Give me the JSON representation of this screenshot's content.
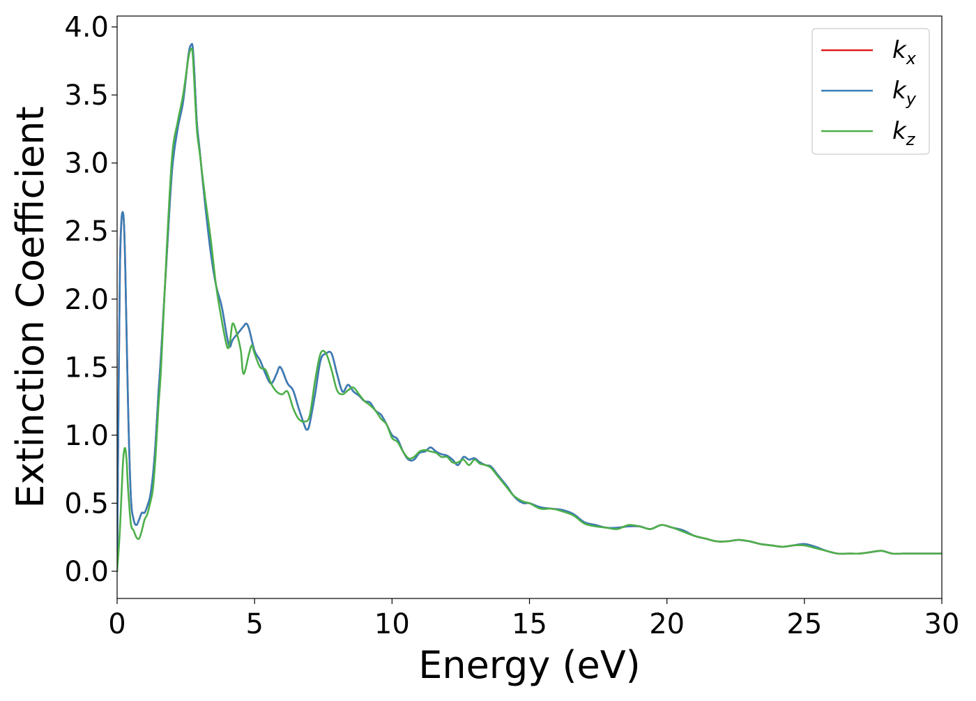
{
  "chart_data": {
    "type": "line",
    "xlabel": "Energy (eV)",
    "ylabel": "Extinction Coefficient",
    "xlim": [
      0,
      30
    ],
    "ylim": [
      -0.2,
      4.08
    ],
    "xticks": [
      "0",
      "5",
      "10",
      "15",
      "20",
      "25",
      "30"
    ],
    "xtick_values": [
      0,
      5,
      10,
      15,
      20,
      25,
      30
    ],
    "yticks": [
      "0.0",
      "0.5",
      "1.0",
      "1.5",
      "2.0",
      "2.5",
      "3.0",
      "3.5",
      "4.0"
    ],
    "ytick_values": [
      0,
      0.5,
      1.0,
      1.5,
      2.0,
      2.5,
      3.0,
      3.5,
      4.0
    ],
    "grid": false,
    "legend_position": "top-right",
    "series": [
      {
        "name": "k",
        "subscript": "x",
        "color": "#e41a1c",
        "x": [
          0,
          0.05,
          0.1,
          0.15,
          0.2,
          0.25,
          0.3,
          0.4,
          0.5,
          0.6,
          0.7,
          0.8,
          0.9,
          1.0,
          1.1,
          1.2,
          1.3,
          1.4,
          1.5,
          1.6,
          1.8,
          2.0,
          2.2,
          2.4,
          2.6,
          2.7,
          2.75,
          2.8,
          2.9,
          3.0,
          3.2,
          3.4,
          3.6,
          3.8,
          4.0,
          4.1,
          4.2,
          4.4,
          4.6,
          4.7,
          4.8,
          5.0,
          5.2,
          5.4,
          5.6,
          5.8,
          5.9,
          6.0,
          6.2,
          6.4,
          6.6,
          6.8,
          6.9,
          7.0,
          7.2,
          7.4,
          7.6,
          7.8,
          8.0,
          8.2,
          8.4,
          8.6,
          8.8,
          9.0,
          9.2,
          9.4,
          9.6,
          9.8,
          10.0,
          10.2,
          10.4,
          10.6,
          10.8,
          11.0,
          11.2,
          11.4,
          11.6,
          11.8,
          12.0,
          12.2,
          12.4,
          12.6,
          12.8,
          13.0,
          13.2,
          13.4,
          13.6,
          13.8,
          14.0,
          14.2,
          14.4,
          14.6,
          14.8,
          15.0,
          15.4,
          15.8,
          16.2,
          16.6,
          17.0,
          17.4,
          17.8,
          18.2,
          18.6,
          19.0,
          19.4,
          19.8,
          20.2,
          20.6,
          21.0,
          21.4,
          21.8,
          22.2,
          22.6,
          23.0,
          23.4,
          23.8,
          24.2,
          24.6,
          25.0,
          25.4,
          25.8,
          26.2,
          26.6,
          27.0,
          27.4,
          27.8,
          28.2,
          28.6,
          29.0,
          29.4,
          29.8,
          30.0
        ],
        "y": [
          0.0,
          1.2,
          2.2,
          2.55,
          2.64,
          2.55,
          2.2,
          1.2,
          0.55,
          0.38,
          0.34,
          0.38,
          0.43,
          0.43,
          0.48,
          0.55,
          0.7,
          0.95,
          1.3,
          1.6,
          2.3,
          2.95,
          3.25,
          3.45,
          3.8,
          3.87,
          3.85,
          3.7,
          3.3,
          3.1,
          2.7,
          2.35,
          2.1,
          1.95,
          1.72,
          1.65,
          1.7,
          1.75,
          1.8,
          1.82,
          1.78,
          1.62,
          1.55,
          1.45,
          1.38,
          1.45,
          1.5,
          1.48,
          1.38,
          1.33,
          1.2,
          1.08,
          1.04,
          1.08,
          1.3,
          1.55,
          1.6,
          1.6,
          1.45,
          1.32,
          1.37,
          1.32,
          1.29,
          1.25,
          1.24,
          1.18,
          1.15,
          1.08,
          1.0,
          0.97,
          0.88,
          0.82,
          0.82,
          0.87,
          0.88,
          0.91,
          0.88,
          0.86,
          0.85,
          0.82,
          0.78,
          0.84,
          0.82,
          0.83,
          0.8,
          0.78,
          0.77,
          0.72,
          0.67,
          0.62,
          0.56,
          0.52,
          0.5,
          0.5,
          0.47,
          0.46,
          0.45,
          0.42,
          0.36,
          0.34,
          0.32,
          0.32,
          0.33,
          0.33,
          0.31,
          0.34,
          0.32,
          0.3,
          0.26,
          0.24,
          0.22,
          0.22,
          0.23,
          0.22,
          0.2,
          0.19,
          0.18,
          0.19,
          0.2,
          0.18,
          0.15,
          0.13,
          0.13,
          0.13,
          0.14,
          0.15,
          0.13,
          0.13,
          0.13,
          0.13,
          0.13,
          0.13
        ]
      },
      {
        "name": "k",
        "subscript": "y",
        "color": "#377eb8",
        "x": [
          0,
          0.05,
          0.1,
          0.15,
          0.2,
          0.25,
          0.3,
          0.4,
          0.5,
          0.6,
          0.7,
          0.8,
          0.9,
          1.0,
          1.1,
          1.2,
          1.3,
          1.4,
          1.5,
          1.6,
          1.8,
          2.0,
          2.2,
          2.4,
          2.6,
          2.7,
          2.75,
          2.8,
          2.9,
          3.0,
          3.2,
          3.4,
          3.6,
          3.8,
          4.0,
          4.1,
          4.2,
          4.4,
          4.6,
          4.7,
          4.8,
          5.0,
          5.2,
          5.4,
          5.6,
          5.8,
          5.9,
          6.0,
          6.2,
          6.4,
          6.6,
          6.8,
          6.9,
          7.0,
          7.2,
          7.4,
          7.6,
          7.8,
          8.0,
          8.2,
          8.4,
          8.6,
          8.8,
          9.0,
          9.2,
          9.4,
          9.6,
          9.8,
          10.0,
          10.2,
          10.4,
          10.6,
          10.8,
          11.0,
          11.2,
          11.4,
          11.6,
          11.8,
          12.0,
          12.2,
          12.4,
          12.6,
          12.8,
          13.0,
          13.2,
          13.4,
          13.6,
          13.8,
          14.0,
          14.2,
          14.4,
          14.6,
          14.8,
          15.0,
          15.4,
          15.8,
          16.2,
          16.6,
          17.0,
          17.4,
          17.8,
          18.2,
          18.6,
          19.0,
          19.4,
          19.8,
          20.2,
          20.6,
          21.0,
          21.4,
          21.8,
          22.2,
          22.6,
          23.0,
          23.4,
          23.8,
          24.2,
          24.6,
          25.0,
          25.4,
          25.8,
          26.2,
          26.6,
          27.0,
          27.4,
          27.8,
          28.2,
          28.6,
          29.0,
          29.4,
          29.8,
          30.0
        ],
        "y": [
          0.0,
          1.2,
          2.2,
          2.55,
          2.64,
          2.55,
          2.2,
          1.2,
          0.55,
          0.38,
          0.34,
          0.38,
          0.43,
          0.43,
          0.48,
          0.55,
          0.7,
          0.95,
          1.3,
          1.6,
          2.3,
          2.95,
          3.25,
          3.45,
          3.8,
          3.87,
          3.85,
          3.7,
          3.3,
          3.1,
          2.7,
          2.35,
          2.1,
          1.95,
          1.72,
          1.65,
          1.7,
          1.75,
          1.8,
          1.82,
          1.78,
          1.62,
          1.55,
          1.45,
          1.38,
          1.45,
          1.5,
          1.48,
          1.38,
          1.33,
          1.2,
          1.08,
          1.04,
          1.08,
          1.3,
          1.55,
          1.6,
          1.6,
          1.45,
          1.32,
          1.37,
          1.32,
          1.29,
          1.25,
          1.24,
          1.18,
          1.15,
          1.08,
          1.0,
          0.97,
          0.88,
          0.82,
          0.82,
          0.87,
          0.88,
          0.91,
          0.88,
          0.86,
          0.85,
          0.82,
          0.78,
          0.84,
          0.82,
          0.83,
          0.8,
          0.78,
          0.77,
          0.72,
          0.67,
          0.62,
          0.56,
          0.52,
          0.5,
          0.5,
          0.47,
          0.46,
          0.45,
          0.42,
          0.36,
          0.34,
          0.32,
          0.32,
          0.33,
          0.33,
          0.31,
          0.34,
          0.32,
          0.3,
          0.26,
          0.24,
          0.22,
          0.22,
          0.23,
          0.22,
          0.2,
          0.19,
          0.18,
          0.19,
          0.2,
          0.18,
          0.15,
          0.13,
          0.13,
          0.13,
          0.14,
          0.15,
          0.13,
          0.13,
          0.13,
          0.13,
          0.13,
          0.13
        ]
      },
      {
        "name": "k",
        "subscript": "z",
        "color": "#4daf4a",
        "x": [
          0,
          0.1,
          0.2,
          0.25,
          0.3,
          0.35,
          0.4,
          0.5,
          0.6,
          0.7,
          0.8,
          0.9,
          1.0,
          1.1,
          1.2,
          1.3,
          1.4,
          1.5,
          1.6,
          1.8,
          2.0,
          2.2,
          2.4,
          2.6,
          2.7,
          2.75,
          2.8,
          2.9,
          3.0,
          3.2,
          3.4,
          3.6,
          3.8,
          4.0,
          4.1,
          4.2,
          4.35,
          4.5,
          4.6,
          4.8,
          4.9,
          5.0,
          5.2,
          5.4,
          5.6,
          5.8,
          6.0,
          6.2,
          6.4,
          6.6,
          6.8,
          7.0,
          7.2,
          7.4,
          7.6,
          7.8,
          8.0,
          8.2,
          8.4,
          8.6,
          8.8,
          9.0,
          9.2,
          9.4,
          9.6,
          9.8,
          10.0,
          10.2,
          10.4,
          10.6,
          10.8,
          11.0,
          11.2,
          11.4,
          11.6,
          11.8,
          12.0,
          12.2,
          12.4,
          12.6,
          12.8,
          13.0,
          13.2,
          13.4,
          13.6,
          13.8,
          14.0,
          14.2,
          14.4,
          14.6,
          14.8,
          15.0,
          15.4,
          15.8,
          16.2,
          16.6,
          17.0,
          17.4,
          17.8,
          18.2,
          18.6,
          19.0,
          19.4,
          19.8,
          20.2,
          20.6,
          21.0,
          21.4,
          21.8,
          22.2,
          22.6,
          23.0,
          23.4,
          23.8,
          24.2,
          24.6,
          25.0,
          25.4,
          25.8,
          26.2,
          26.6,
          27.0,
          27.4,
          27.8,
          28.2,
          28.6,
          29.0,
          29.4,
          29.8,
          30.0
        ],
        "y": [
          0.0,
          0.3,
          0.75,
          0.88,
          0.9,
          0.8,
          0.6,
          0.35,
          0.3,
          0.25,
          0.24,
          0.3,
          0.38,
          0.42,
          0.5,
          0.6,
          0.85,
          1.2,
          1.5,
          2.35,
          3.05,
          3.3,
          3.5,
          3.78,
          3.84,
          3.8,
          3.62,
          3.25,
          3.08,
          2.75,
          2.45,
          2.1,
          1.85,
          1.65,
          1.68,
          1.82,
          1.75,
          1.62,
          1.45,
          1.6,
          1.66,
          1.6,
          1.5,
          1.48,
          1.38,
          1.32,
          1.3,
          1.32,
          1.2,
          1.12,
          1.1,
          1.14,
          1.4,
          1.6,
          1.6,
          1.48,
          1.33,
          1.3,
          1.33,
          1.35,
          1.3,
          1.25,
          1.22,
          1.18,
          1.12,
          1.08,
          0.98,
          0.95,
          0.88,
          0.83,
          0.84,
          0.88,
          0.89,
          0.88,
          0.87,
          0.84,
          0.84,
          0.8,
          0.8,
          0.82,
          0.78,
          0.82,
          0.79,
          0.78,
          0.76,
          0.71,
          0.66,
          0.61,
          0.56,
          0.53,
          0.51,
          0.5,
          0.46,
          0.46,
          0.44,
          0.41,
          0.35,
          0.33,
          0.32,
          0.31,
          0.34,
          0.33,
          0.31,
          0.34,
          0.32,
          0.29,
          0.26,
          0.24,
          0.22,
          0.22,
          0.23,
          0.22,
          0.2,
          0.19,
          0.18,
          0.19,
          0.19,
          0.17,
          0.15,
          0.13,
          0.13,
          0.13,
          0.14,
          0.15,
          0.13,
          0.13,
          0.13,
          0.13,
          0.13,
          0.13
        ]
      }
    ]
  }
}
